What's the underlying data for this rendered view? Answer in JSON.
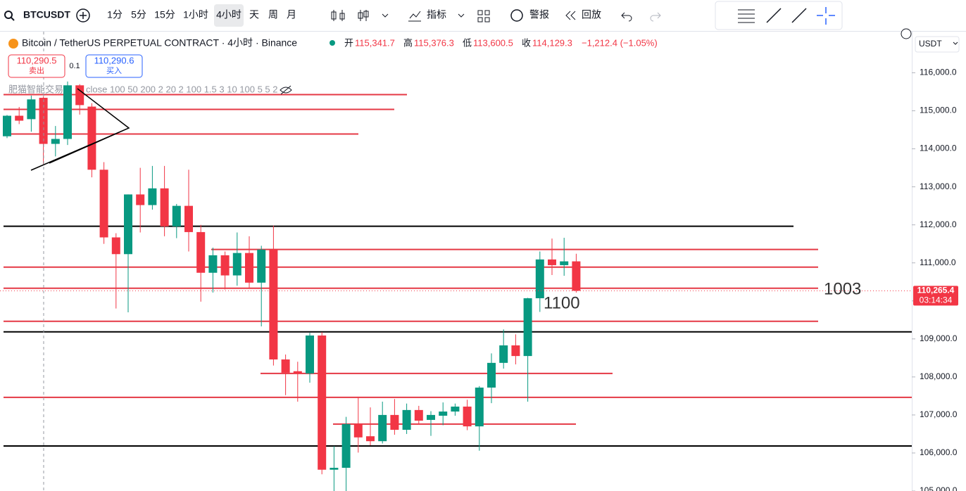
{
  "toolbar": {
    "symbol": "BTCUSDT",
    "intervals": [
      "1分",
      "5分",
      "15分",
      "1小时",
      "4小时",
      "天",
      "周",
      "月"
    ],
    "active": 4,
    "buttons": [
      "指标",
      "警报",
      "回放"
    ]
  },
  "legend": {
    "title": "Bitcoin / TetherUS PERPETUAL CONTRACT · 4小时 · Binance",
    "ohlc": [
      {
        "label": "开",
        "value": "115,341.7"
      },
      {
        "label": "高",
        "value": "115,376.3"
      },
      {
        "label": "低",
        "value": "113,600.5"
      },
      {
        "label": "收",
        "value": "114,129.3"
      }
    ],
    "change": "−1,212.4 (−1.05%)"
  },
  "orders": {
    "sell_price": "110,290.5",
    "sell_label": "卖出",
    "spread": "0.1",
    "buy_price": "110,290.6",
    "buy_label": "买入"
  },
  "indicator": {
    "name": "肥猫智能交易",
    "params": "close 100 50 200 2 20 2 100 1.5 3 10 100 5 5 2"
  },
  "price_axis": {
    "currency": "USDT",
    "countdown": "03:14:34"
  },
  "chart_data": {
    "type": "candlestick",
    "ylim": [
      105000,
      117100
    ],
    "yticks": [
      {
        "value": 105000,
        "label": "105,000.0"
      },
      {
        "value": 106000,
        "label": "106,000.0"
      },
      {
        "value": 107000,
        "label": "107,000.0"
      },
      {
        "value": 108000,
        "label": "108,000.0"
      },
      {
        "value": 109000,
        "label": "109,000.0"
      },
      {
        "value": 110000,
        "label": "110,000.0"
      },
      {
        "value": 111000,
        "label": "111,000.0"
      },
      {
        "value": 112000,
        "label": "112,000.0"
      },
      {
        "value": 113000,
        "label": "113,000.0"
      },
      {
        "value": 114000,
        "label": "114,000.0"
      },
      {
        "value": 115000,
        "label": "115,000.0"
      },
      {
        "value": 116000,
        "label": "116,000.0"
      }
    ],
    "up_color": "#089981",
    "down_color": "#f23645",
    "open": [
      114330,
      114870,
      114780,
      115341.7,
      114130,
      114260,
      115670,
      115110,
      113450,
      111670,
      111230,
      112800,
      112520,
      112960,
      111960,
      112500,
      111810,
      110740,
      111200,
      110670,
      111260,
      110480,
      111350,
      108460,
      108150,
      108090,
      109090,
      105560,
      105610,
      106760,
      106440,
      106310,
      107000,
      106610,
      107130,
      106870,
      106980,
      107090,
      107220,
      106700,
      107720,
      108370,
      108830,
      108550,
      110070,
      111090,
      110940,
      111040
    ],
    "high": [
      114890,
      115100,
      115400,
      115376.3,
      114600,
      115770,
      115700,
      115200,
      113650,
      111780,
      112800,
      113500,
      113550,
      113550,
      112550,
      113450,
      112000,
      111400,
      111300,
      111800,
      111700,
      111450,
      111980,
      108590,
      108400,
      109160,
      109180,
      106180,
      106950,
      107480,
      107200,
      107350,
      107420,
      107300,
      107240,
      107100,
      107330,
      107300,
      107400,
      107760,
      108620,
      109250,
      109120,
      110080,
      111300,
      111640,
      111660,
      111240
    ],
    "low": [
      114280,
      114650,
      114450,
      113600.5,
      113800,
      114100,
      114900,
      113250,
      111500,
      109800,
      109700,
      111800,
      112400,
      111700,
      111650,
      111300,
      109980,
      110220,
      110300,
      110400,
      110330,
      109330,
      108300,
      107520,
      107350,
      107850,
      105440,
      105000,
      105000,
      106010,
      106200,
      106250,
      106480,
      106500,
      106750,
      106450,
      106730,
      106980,
      106600,
      106060,
      107310,
      108220,
      108330,
      107350,
      109710,
      110680,
      110660,
      110220
    ],
    "close": [
      114870,
      114740,
      115300,
      114129.3,
      114260,
      115670,
      115150,
      113450,
      111670,
      111230,
      112800,
      112520,
      112960,
      111960,
      112500,
      111810,
      110740,
      111200,
      110670,
      111260,
      110480,
      111350,
      108460,
      108110,
      108090,
      109090,
      105560,
      105610,
      106760,
      106410,
      106310,
      107000,
      106610,
      107130,
      106850,
      107000,
      107090,
      107220,
      106700,
      107720,
      108370,
      108830,
      108550,
      110070,
      111090,
      110940,
      111040,
      110265.4
    ],
    "last_price": {
      "value": 110265.4,
      "label": "110,265.4"
    },
    "levels": [
      {
        "value": 115426,
        "color": "#e53945"
      },
      {
        "value": 115037,
        "color": "#e53945"
      },
      {
        "value": 114389,
        "color": "#e53945"
      },
      {
        "value": 111963,
        "color": "#000000"
      },
      {
        "value": 111352,
        "color": "#e53945"
      },
      {
        "value": 110889,
        "color": "#e53945"
      },
      {
        "value": 110333,
        "color": "#e53945"
      },
      {
        "value": 109463,
        "color": "#e53945"
      },
      {
        "value": 109185,
        "color": "#000000"
      },
      {
        "value": 108093,
        "color": "#e53945"
      },
      {
        "value": 107463,
        "color": "#e53945"
      },
      {
        "value": 106759,
        "color": "#e53945"
      },
      {
        "value": 106185,
        "color": "#000000"
      }
    ],
    "annotations": [
      "1003",
      "1100"
    ]
  }
}
